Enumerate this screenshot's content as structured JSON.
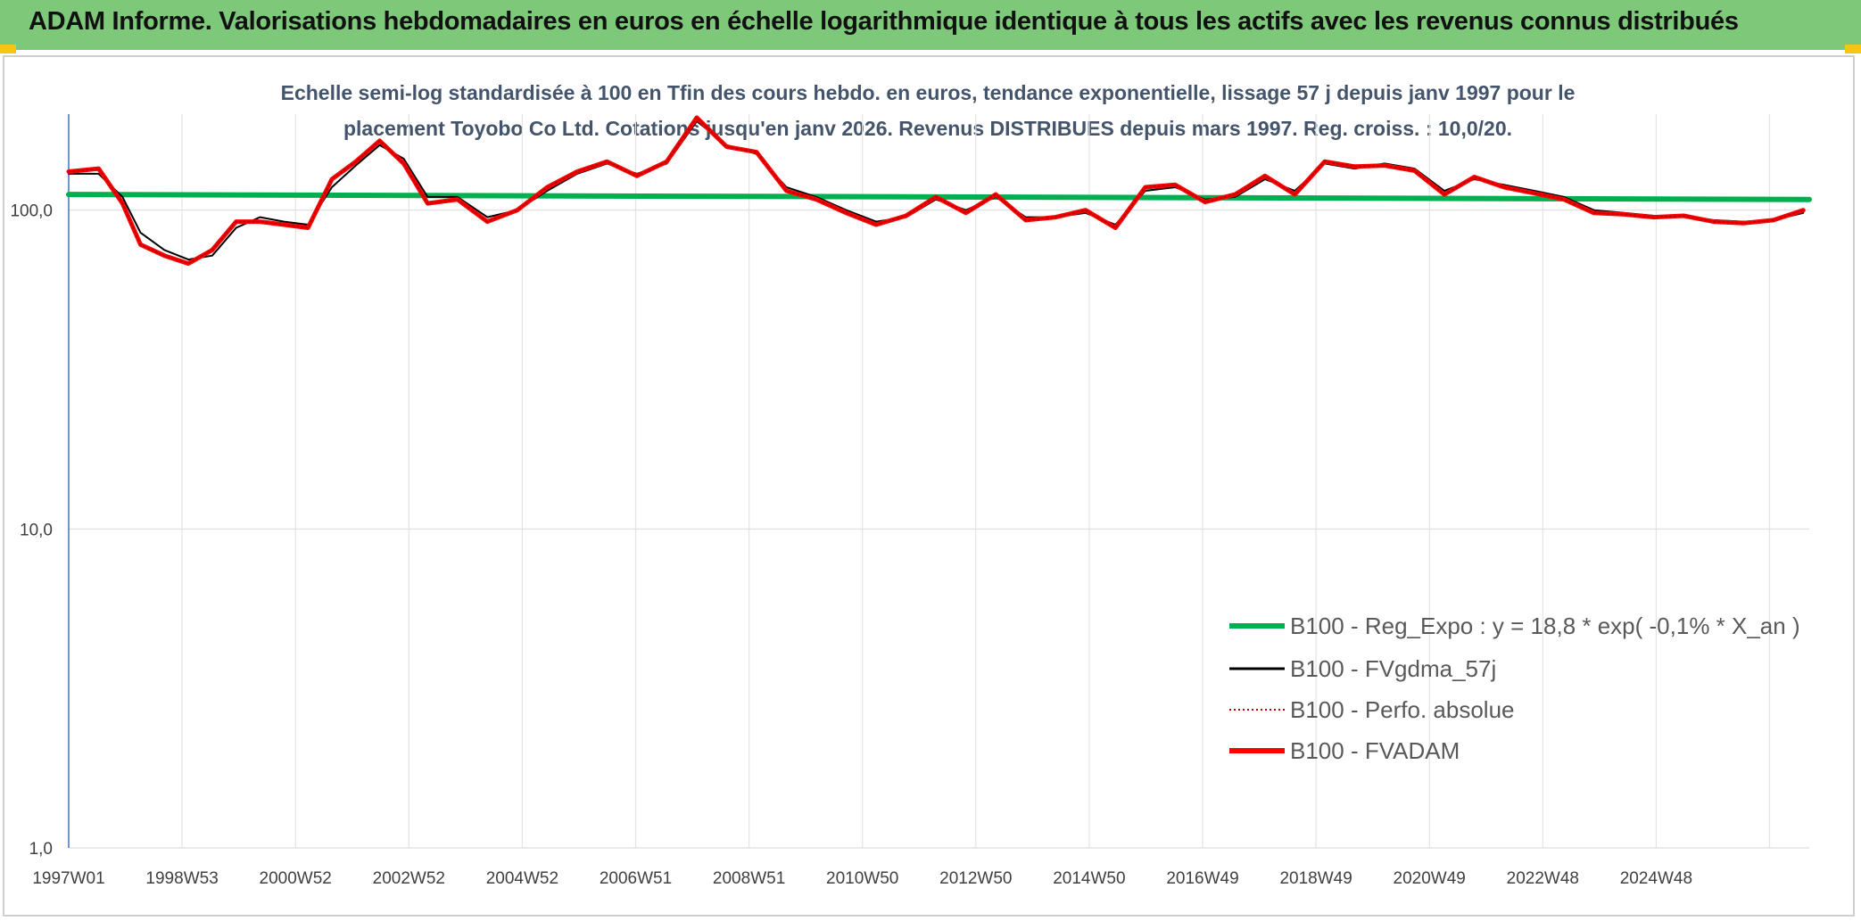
{
  "banner": {
    "title": "ADAM Informe. Valorisations hebdomadaires en euros en échelle logarithmique identique à tous les actifs avec les revenus connus distribués",
    "color": "#7ec87a"
  },
  "chart_data": {
    "type": "line",
    "title_line1": "Echelle semi-log standardisée à 100 en Tfin des cours hebdo. en euros, tendance exponentielle, lissage 57 j depuis janv 1997 pour le",
    "title_line2": "placement Toyobo Co Ltd. Cotations jusqu'en janv 2026. Revenus DISTRIBUES depuis mars 1997. Reg. croiss. : 10,0/20.",
    "y_scale": "log",
    "ylim": [
      1,
      200
    ],
    "y_ticks": [
      "1,0",
      "10,0",
      "100,0"
    ],
    "x_ticks": [
      "1997W01",
      "1998W53",
      "2000W52",
      "2002W52",
      "2004W52",
      "2006W51",
      "2008W51",
      "2010W50",
      "2012W50",
      "2014W50",
      "2016W49",
      "2018W49",
      "2020W49",
      "2022W48",
      "2024W48"
    ],
    "xlim": [
      1997.0,
      2026.1
    ],
    "grid": true,
    "legend_position": "bottom-right",
    "series": [
      {
        "name": "B100 - Reg_Expo : y = 18,8 * exp( -0,1% *  X_an )",
        "color": "#00b050",
        "style": "thick",
        "x": [
          1997.0,
          2026.1
        ],
        "values": [
          112,
          108
        ]
      },
      {
        "name": "B100 - FVgdma_57j",
        "color": "#000000",
        "style": "thin",
        "x": [
          1997.0,
          1997.5,
          1997.9,
          1998.2,
          1998.6,
          1999.0,
          1999.4,
          1999.8,
          2000.2,
          2000.6,
          2001.0,
          2001.4,
          2001.8,
          2002.2,
          2002.6,
          2003.0,
          2003.5,
          2004.0,
          2004.5,
          2005.0,
          2005.5,
          2006.0,
          2006.5,
          2007.0,
          2007.5,
          2008.0,
          2008.5,
          2009.0,
          2009.5,
          2010.0,
          2010.5,
          2011.0,
          2011.5,
          2012.0,
          2012.5,
          2013.0,
          2013.5,
          2014.0,
          2014.5,
          2015.0,
          2015.5,
          2016.0,
          2016.5,
          2017.0,
          2017.5,
          2018.0,
          2018.5,
          2019.0,
          2019.5,
          2020.0,
          2020.5,
          2021.0,
          2021.5,
          2022.0,
          2022.5,
          2023.0,
          2023.5,
          2024.0,
          2024.5,
          2025.0,
          2025.5,
          2026.0
        ],
        "values": [
          130,
          130,
          110,
          85,
          75,
          70,
          72,
          88,
          95,
          92,
          90,
          118,
          138,
          160,
          145,
          110,
          110,
          95,
          100,
          115,
          130,
          140,
          130,
          140,
          190,
          160,
          150,
          118,
          110,
          100,
          92,
          95,
          108,
          100,
          110,
          95,
          95,
          98,
          90,
          115,
          118,
          108,
          110,
          125,
          115,
          140,
          135,
          140,
          135,
          115,
          125,
          120,
          115,
          110,
          100,
          98,
          96,
          96,
          93,
          92,
          93,
          98
        ]
      },
      {
        "name": "B100 - Perfo. absolue",
        "color": "#c00000",
        "style": "dotted",
        "x": [
          1997.0,
          1997.5,
          1997.9,
          1998.2,
          1998.6,
          1999.0,
          1999.4,
          1999.8,
          2000.2,
          2000.6,
          2001.0,
          2001.4,
          2001.8,
          2002.2,
          2002.6,
          2003.0,
          2003.5,
          2004.0,
          2004.5,
          2005.0,
          2005.5,
          2006.0,
          2006.5,
          2007.0,
          2007.5,
          2008.0,
          2008.5,
          2009.0,
          2009.5,
          2010.0,
          2010.5,
          2011.0,
          2011.5,
          2012.0,
          2012.5,
          2013.0,
          2013.5,
          2014.0,
          2014.5,
          2015.0,
          2015.5,
          2016.0,
          2016.5,
          2017.0,
          2017.5,
          2018.0,
          2018.5,
          2019.0,
          2019.5,
          2020.0,
          2020.5,
          2021.0,
          2021.5,
          2022.0,
          2022.5,
          2023.0,
          2023.5,
          2024.0,
          2024.5,
          2025.0,
          2025.5,
          2026.0
        ],
        "values": [
          132,
          135,
          105,
          78,
          72,
          68,
          75,
          92,
          92,
          90,
          88,
          125,
          142,
          165,
          140,
          105,
          108,
          92,
          100,
          118,
          132,
          142,
          128,
          142,
          195,
          158,
          152,
          115,
          108,
          98,
          90,
          96,
          110,
          98,
          112,
          93,
          95,
          100,
          88,
          118,
          120,
          106,
          112,
          128,
          112,
          142,
          137,
          138,
          133,
          112,
          127,
          118,
          113,
          108,
          98,
          97,
          95,
          96,
          92,
          91,
          93,
          100
        ]
      },
      {
        "name": "B100 - FVADAM",
        "color": "#ff0000",
        "style": "thick",
        "x": [
          1997.0,
          1997.5,
          1997.9,
          1998.2,
          1998.6,
          1999.0,
          1999.4,
          1999.8,
          2000.2,
          2000.6,
          2001.0,
          2001.4,
          2001.8,
          2002.2,
          2002.6,
          2003.0,
          2003.5,
          2004.0,
          2004.5,
          2005.0,
          2005.5,
          2006.0,
          2006.5,
          2007.0,
          2007.5,
          2008.0,
          2008.5,
          2009.0,
          2009.5,
          2010.0,
          2010.5,
          2011.0,
          2011.5,
          2012.0,
          2012.5,
          2013.0,
          2013.5,
          2014.0,
          2014.5,
          2015.0,
          2015.5,
          2016.0,
          2016.5,
          2017.0,
          2017.5,
          2018.0,
          2018.5,
          2019.0,
          2019.5,
          2020.0,
          2020.5,
          2021.0,
          2021.5,
          2022.0,
          2022.5,
          2023.0,
          2023.5,
          2024.0,
          2024.5,
          2025.0,
          2025.5,
          2026.0
        ],
        "values": [
          132,
          135,
          105,
          78,
          72,
          68,
          75,
          92,
          92,
          90,
          88,
          125,
          142,
          165,
          140,
          105,
          108,
          92,
          100,
          118,
          132,
          142,
          128,
          142,
          195,
          158,
          152,
          115,
          108,
          98,
          90,
          96,
          110,
          98,
          112,
          93,
          95,
          100,
          88,
          118,
          120,
          106,
          112,
          128,
          112,
          142,
          137,
          138,
          133,
          112,
          127,
          118,
          113,
          108,
          98,
          97,
          95,
          96,
          92,
          91,
          93,
          100
        ]
      }
    ]
  }
}
